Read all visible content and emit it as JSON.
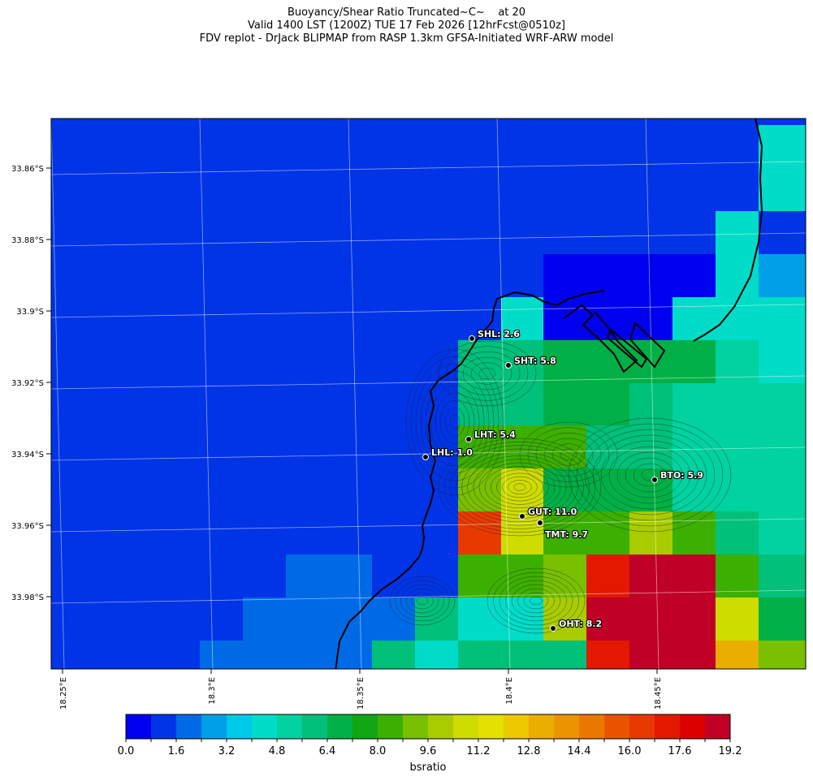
{
  "title": {
    "line1": "Buoyancy/Shear Ratio Truncated~C~    at 20",
    "line2": "Valid 1400 LST (1200Z) TUE 17 Feb 2026 [12hrFcst@0510z]",
    "line3": "FDV replot - DrJack BLIPMAP from RASP 1.3km GFSA-Initiated WRF-ARW model"
  },
  "map": {
    "lat_ticks": [
      "33.86°S",
      "33.88°S",
      "33.9°S",
      "33.92°S",
      "33.94°S",
      "33.96°S",
      "33.98°S"
    ],
    "lon_ticks": [
      "18.25°E",
      "18.3°E",
      "18.35°E",
      "18.4°E",
      "18.45°E"
    ],
    "stations": [
      {
        "id": "SHL",
        "label": "SHL: 2.6"
      },
      {
        "id": "SHT",
        "label": "SHT: 5.8"
      },
      {
        "id": "LHT",
        "label": "LHT: 5.4"
      },
      {
        "id": "LHL",
        "label": "LHL: 1.0"
      },
      {
        "id": "BTO",
        "label": "BTO: 5.9"
      },
      {
        "id": "GUT",
        "label": "GUT: 11.0"
      },
      {
        "id": "TMT",
        "label": "TMT: 9.7"
      },
      {
        "id": "OHT",
        "label": "OHT: 8.2"
      }
    ]
  },
  "colorbar": {
    "label": "bsratio",
    "tick_labels": [
      "0.0",
      "1.6",
      "3.2",
      "4.8",
      "6.4",
      "8.0",
      "9.6",
      "11.2",
      "12.8",
      "14.4",
      "16.0",
      "17.6",
      "19.2"
    ],
    "colors": [
      "#0000f0",
      "#0034e6",
      "#006ae6",
      "#00a0e8",
      "#00c8e8",
      "#00dcc8",
      "#00d2a0",
      "#00c07a",
      "#00b046",
      "#12a614",
      "#3cb000",
      "#78c000",
      "#a8cc00",
      "#cedc00",
      "#e4e000",
      "#ecc800",
      "#eaae00",
      "#ea9400",
      "#ea7800",
      "#ea5400",
      "#e83a00",
      "#e21800",
      "#dc0000",
      "#c00026"
    ]
  }
}
